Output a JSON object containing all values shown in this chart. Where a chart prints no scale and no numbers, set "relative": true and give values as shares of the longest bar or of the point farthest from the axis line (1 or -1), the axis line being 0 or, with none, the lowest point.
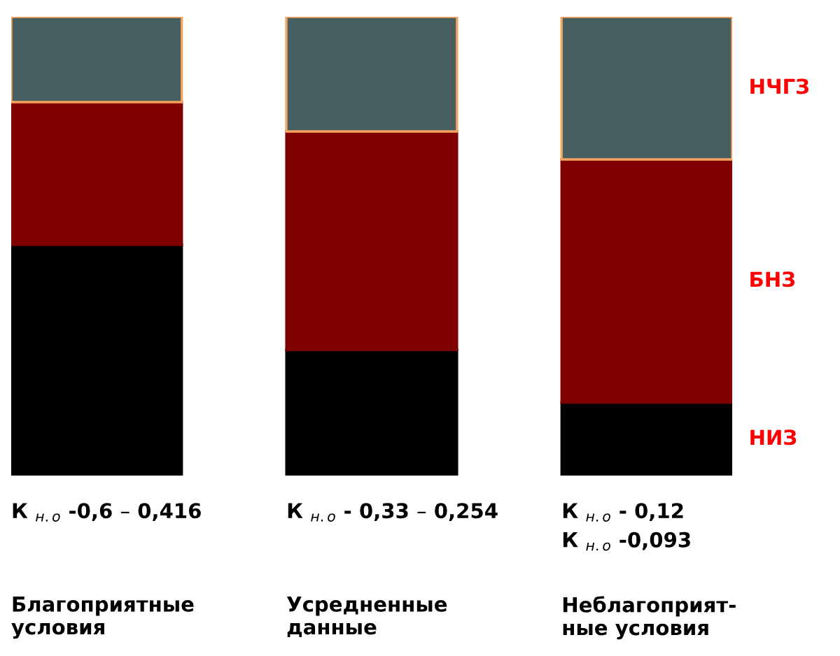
{
  "chart_data": {
    "type": "bar",
    "stacked": true,
    "relative": true,
    "categories": [
      "Благоприятные\nусловия",
      "Усредненные\nданные",
      "Неблагоприят-\nные условия"
    ],
    "series": [
      {
        "name": "НИЗ",
        "color": "#000000",
        "values": [
          0.503,
          0.274,
          0.159
        ]
      },
      {
        "name": "БНЗ",
        "color": "#800000",
        "values": [
          0.311,
          0.476,
          0.53
        ]
      },
      {
        "name": "НЧГЗ",
        "color": "#475f60",
        "values": [
          0.186,
          0.25,
          0.311
        ]
      }
    ],
    "annotations": [
      "К $_{н.о}$ -0,6 – 0,416",
      "К $_{н.о}$ - 0,33 – 0,254",
      "К $_{н.о}$ - 0,12\nК $_{н.о}$ -0,093"
    ],
    "legend": false
  }
}
